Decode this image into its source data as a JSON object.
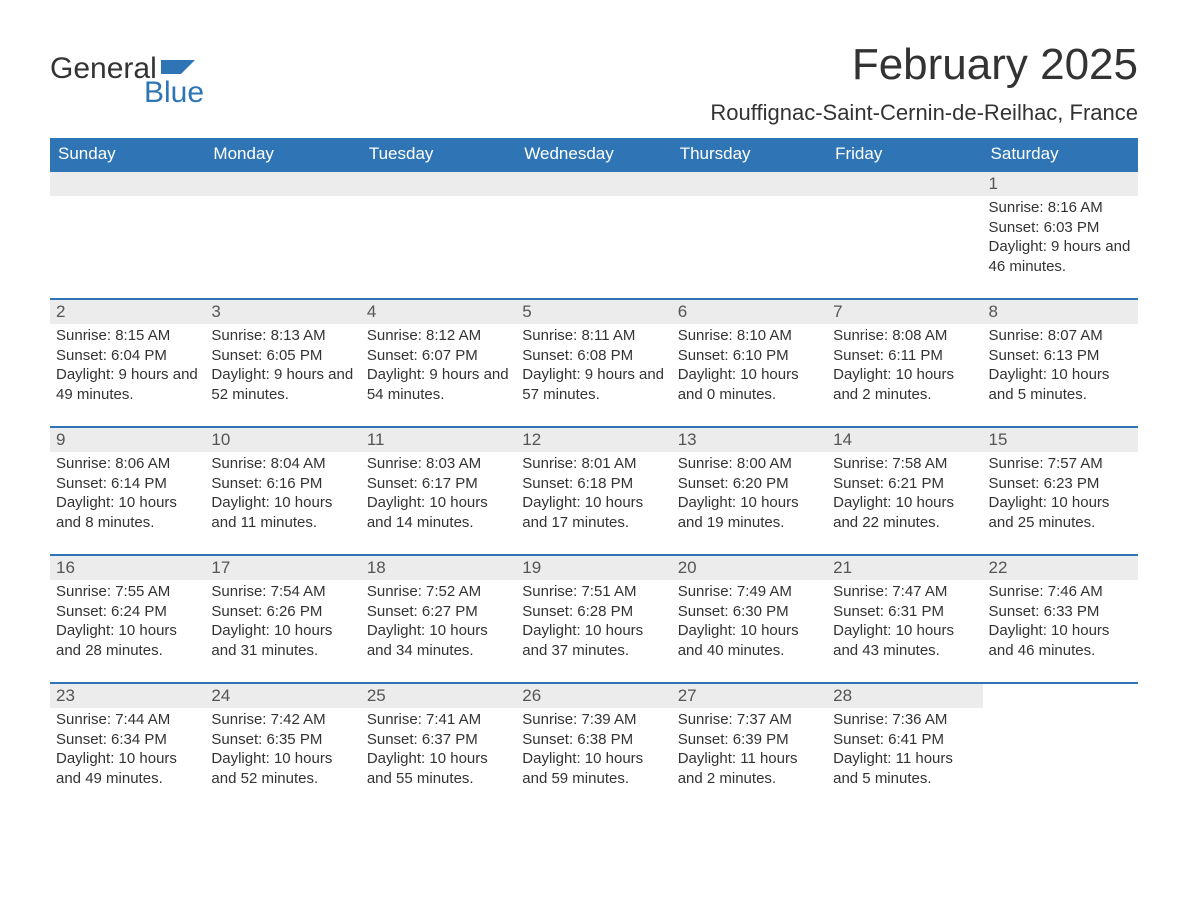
{
  "logo": {
    "word1": "General",
    "word2": "Blue",
    "flag_color": "#2F75B5"
  },
  "title": "February 2025",
  "location": "Rouffignac-Saint-Cernin-de-Reilhac, France",
  "colors": {
    "header_bg": "#2F75B5",
    "daynum_bg": "#ECECEC",
    "text": "#333333",
    "header_text": "#FFFFFF"
  },
  "day_names": [
    "Sunday",
    "Monday",
    "Tuesday",
    "Wednesday",
    "Thursday",
    "Friday",
    "Saturday"
  ],
  "weeks": [
    [
      null,
      null,
      null,
      null,
      null,
      null,
      {
        "n": "1",
        "sunrise": "Sunrise: 8:16 AM",
        "sunset": "Sunset: 6:03 PM",
        "daylight": "Daylight: 9 hours and 46 minutes."
      }
    ],
    [
      {
        "n": "2",
        "sunrise": "Sunrise: 8:15 AM",
        "sunset": "Sunset: 6:04 PM",
        "daylight": "Daylight: 9 hours and 49 minutes."
      },
      {
        "n": "3",
        "sunrise": "Sunrise: 8:13 AM",
        "sunset": "Sunset: 6:05 PM",
        "daylight": "Daylight: 9 hours and 52 minutes."
      },
      {
        "n": "4",
        "sunrise": "Sunrise: 8:12 AM",
        "sunset": "Sunset: 6:07 PM",
        "daylight": "Daylight: 9 hours and 54 minutes."
      },
      {
        "n": "5",
        "sunrise": "Sunrise: 8:11 AM",
        "sunset": "Sunset: 6:08 PM",
        "daylight": "Daylight: 9 hours and 57 minutes."
      },
      {
        "n": "6",
        "sunrise": "Sunrise: 8:10 AM",
        "sunset": "Sunset: 6:10 PM",
        "daylight": "Daylight: 10 hours and 0 minutes."
      },
      {
        "n": "7",
        "sunrise": "Sunrise: 8:08 AM",
        "sunset": "Sunset: 6:11 PM",
        "daylight": "Daylight: 10 hours and 2 minutes."
      },
      {
        "n": "8",
        "sunrise": "Sunrise: 8:07 AM",
        "sunset": "Sunset: 6:13 PM",
        "daylight": "Daylight: 10 hours and 5 minutes."
      }
    ],
    [
      {
        "n": "9",
        "sunrise": "Sunrise: 8:06 AM",
        "sunset": "Sunset: 6:14 PM",
        "daylight": "Daylight: 10 hours and 8 minutes."
      },
      {
        "n": "10",
        "sunrise": "Sunrise: 8:04 AM",
        "sunset": "Sunset: 6:16 PM",
        "daylight": "Daylight: 10 hours and 11 minutes."
      },
      {
        "n": "11",
        "sunrise": "Sunrise: 8:03 AM",
        "sunset": "Sunset: 6:17 PM",
        "daylight": "Daylight: 10 hours and 14 minutes."
      },
      {
        "n": "12",
        "sunrise": "Sunrise: 8:01 AM",
        "sunset": "Sunset: 6:18 PM",
        "daylight": "Daylight: 10 hours and 17 minutes."
      },
      {
        "n": "13",
        "sunrise": "Sunrise: 8:00 AM",
        "sunset": "Sunset: 6:20 PM",
        "daylight": "Daylight: 10 hours and 19 minutes."
      },
      {
        "n": "14",
        "sunrise": "Sunrise: 7:58 AM",
        "sunset": "Sunset: 6:21 PM",
        "daylight": "Daylight: 10 hours and 22 minutes."
      },
      {
        "n": "15",
        "sunrise": "Sunrise: 7:57 AM",
        "sunset": "Sunset: 6:23 PM",
        "daylight": "Daylight: 10 hours and 25 minutes."
      }
    ],
    [
      {
        "n": "16",
        "sunrise": "Sunrise: 7:55 AM",
        "sunset": "Sunset: 6:24 PM",
        "daylight": "Daylight: 10 hours and 28 minutes."
      },
      {
        "n": "17",
        "sunrise": "Sunrise: 7:54 AM",
        "sunset": "Sunset: 6:26 PM",
        "daylight": "Daylight: 10 hours and 31 minutes."
      },
      {
        "n": "18",
        "sunrise": "Sunrise: 7:52 AM",
        "sunset": "Sunset: 6:27 PM",
        "daylight": "Daylight: 10 hours and 34 minutes."
      },
      {
        "n": "19",
        "sunrise": "Sunrise: 7:51 AM",
        "sunset": "Sunset: 6:28 PM",
        "daylight": "Daylight: 10 hours and 37 minutes."
      },
      {
        "n": "20",
        "sunrise": "Sunrise: 7:49 AM",
        "sunset": "Sunset: 6:30 PM",
        "daylight": "Daylight: 10 hours and 40 minutes."
      },
      {
        "n": "21",
        "sunrise": "Sunrise: 7:47 AM",
        "sunset": "Sunset: 6:31 PM",
        "daylight": "Daylight: 10 hours and 43 minutes."
      },
      {
        "n": "22",
        "sunrise": "Sunrise: 7:46 AM",
        "sunset": "Sunset: 6:33 PM",
        "daylight": "Daylight: 10 hours and 46 minutes."
      }
    ],
    [
      {
        "n": "23",
        "sunrise": "Sunrise: 7:44 AM",
        "sunset": "Sunset: 6:34 PM",
        "daylight": "Daylight: 10 hours and 49 minutes."
      },
      {
        "n": "24",
        "sunrise": "Sunrise: 7:42 AM",
        "sunset": "Sunset: 6:35 PM",
        "daylight": "Daylight: 10 hours and 52 minutes."
      },
      {
        "n": "25",
        "sunrise": "Sunrise: 7:41 AM",
        "sunset": "Sunset: 6:37 PM",
        "daylight": "Daylight: 10 hours and 55 minutes."
      },
      {
        "n": "26",
        "sunrise": "Sunrise: 7:39 AM",
        "sunset": "Sunset: 6:38 PM",
        "daylight": "Daylight: 10 hours and 59 minutes."
      },
      {
        "n": "27",
        "sunrise": "Sunrise: 7:37 AM",
        "sunset": "Sunset: 6:39 PM",
        "daylight": "Daylight: 11 hours and 2 minutes."
      },
      {
        "n": "28",
        "sunrise": "Sunrise: 7:36 AM",
        "sunset": "Sunset: 6:41 PM",
        "daylight": "Daylight: 11 hours and 5 minutes."
      },
      null
    ]
  ]
}
